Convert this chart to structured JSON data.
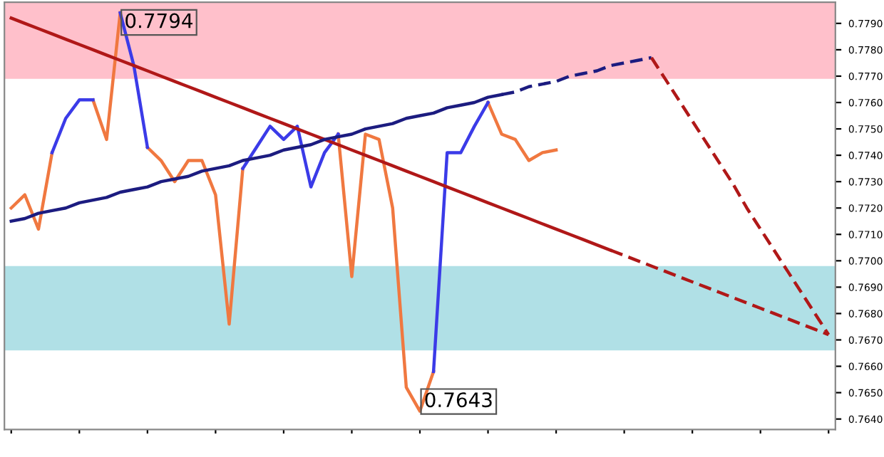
{
  "chart_data": {
    "type": "line",
    "categories": [
      null,
      null,
      null,
      null,
      null,
      null,
      null,
      null,
      null,
      null,
      null,
      null,
      null,
      null,
      null,
      null,
      null,
      null,
      null,
      null,
      null,
      null,
      null,
      null,
      null,
      null,
      null,
      null,
      null,
      null,
      null,
      null,
      null,
      null,
      null,
      null,
      null,
      null,
      null,
      null,
      null,
      null,
      null,
      null,
      null,
      null,
      null,
      null,
      null,
      null,
      null,
      null,
      null,
      null,
      null,
      null,
      null,
      null,
      null,
      null,
      null
    ],
    "series": [
      {
        "color": "#f07840",
        "values": [
          0.772,
          0.7725,
          0.7712,
          0.7741,
          null,
          null,
          0.7761,
          0.7746,
          0.7794,
          null,
          0.7743,
          0.7738,
          0.773,
          0.7738,
          0.7738,
          0.7725,
          0.7676,
          0.7735,
          null,
          null,
          null,
          null,
          null,
          null,
          0.7748,
          0.7694,
          0.7748,
          0.7746,
          0.772,
          0.7652,
          0.7643,
          0.7658,
          null,
          null,
          null,
          0.776,
          0.7748,
          0.7746,
          0.7738,
          0.7741,
          0.7742,
          null,
          null,
          null,
          null,
          null,
          null,
          null,
          null,
          null,
          null,
          null,
          null,
          null,
          null,
          null,
          null,
          null,
          null,
          null,
          null
        ]
      },
      {
        "color": "#3b3be8",
        "values": [
          null,
          null,
          null,
          0.7741,
          0.7754,
          0.7761,
          0.7761,
          null,
          0.7794,
          0.7774,
          0.7743,
          null,
          null,
          null,
          null,
          null,
          null,
          0.7735,
          0.7743,
          0.7751,
          0.7746,
          0.7751,
          0.7728,
          0.7741,
          0.7748,
          null,
          null,
          null,
          null,
          null,
          null,
          0.7658,
          0.7741,
          0.7741,
          0.7751,
          0.776,
          null,
          null,
          null,
          null,
          null,
          null,
          null,
          null,
          null,
          null,
          null,
          null,
          null,
          null,
          null,
          null,
          null,
          null,
          null,
          null,
          null,
          null,
          null,
          null,
          null
        ]
      },
      {
        "color": "#b01818",
        "line_style": "solid",
        "values": [
          0.7792,
          0.779,
          0.7788,
          0.7786,
          0.7784,
          0.7782,
          0.778,
          0.7778,
          0.7776,
          0.7774,
          0.7772,
          0.777,
          0.7768,
          0.7766,
          0.7764,
          0.7762,
          0.776,
          0.7758,
          0.7756,
          0.7754,
          0.7752,
          0.775,
          0.7748,
          0.7746,
          0.7744,
          0.7742,
          0.774,
          0.7738,
          0.7736,
          0.7734,
          0.7732,
          0.773,
          0.7728,
          0.7726,
          0.7724,
          0.7722,
          0.772,
          0.7718,
          0.7716,
          0.7714,
          0.7712,
          0.771,
          0.7708,
          0.7706,
          0.7704,
          null,
          null,
          null,
          null,
          null,
          null,
          null,
          null,
          null,
          null,
          null,
          null,
          null,
          null,
          null,
          null
        ]
      },
      {
        "color": "#b01818",
        "line_style": "dashed",
        "values": [
          null,
          null,
          null,
          null,
          null,
          null,
          null,
          null,
          null,
          null,
          null,
          null,
          null,
          null,
          null,
          null,
          null,
          null,
          null,
          null,
          null,
          null,
          null,
          null,
          null,
          null,
          null,
          null,
          null,
          null,
          null,
          null,
          null,
          null,
          null,
          null,
          null,
          null,
          null,
          null,
          null,
          null,
          null,
          null,
          0.7704,
          0.7702,
          0.77,
          0.7698,
          0.7696,
          0.7694,
          0.7692,
          0.769,
          0.7688,
          0.7686,
          0.7684,
          0.7682,
          0.768,
          0.7678,
          0.7676,
          0.7674,
          0.7672
        ]
      },
      {
        "color": "#1c1c80",
        "line_style": "solid",
        "values": [
          0.7715,
          0.7716,
          0.7718,
          0.7719,
          0.772,
          0.7722,
          0.7723,
          0.7724,
          0.7726,
          0.7727,
          0.7728,
          0.773,
          0.7731,
          0.7732,
          0.7734,
          0.7735,
          0.7736,
          0.7738,
          0.7739,
          0.774,
          0.7742,
          0.7743,
          0.7744,
          0.7746,
          0.7747,
          0.7748,
          0.775,
          0.7751,
          0.7752,
          0.7754,
          0.7755,
          0.7756,
          0.7758,
          0.7759,
          0.776,
          0.7762,
          0.7763,
          null,
          null,
          null,
          null,
          null,
          null,
          null,
          null,
          null,
          null,
          null,
          null,
          null,
          null,
          null,
          null,
          null,
          null,
          null,
          null,
          null,
          null,
          null,
          null
        ]
      },
      {
        "color": "#1c1c80",
        "line_style": "dashed",
        "values": [
          null,
          null,
          null,
          null,
          null,
          null,
          null,
          null,
          null,
          null,
          null,
          null,
          null,
          null,
          null,
          null,
          null,
          null,
          null,
          null,
          null,
          null,
          null,
          null,
          null,
          null,
          null,
          null,
          null,
          null,
          null,
          null,
          null,
          null,
          null,
          null,
          0.7763,
          0.7764,
          0.7766,
          0.7767,
          0.7768,
          0.777,
          0.7771,
          0.7772,
          0.7774,
          0.7775,
          0.7776,
          0.7777,
          null,
          null,
          null,
          null,
          null,
          null,
          null,
          null,
          null,
          null,
          null,
          null,
          null
        ]
      },
      {
        "color": "#b01818",
        "line_style": "dashed",
        "values": [
          null,
          null,
          null,
          null,
          null,
          null,
          null,
          null,
          null,
          null,
          null,
          null,
          null,
          null,
          null,
          null,
          null,
          null,
          null,
          null,
          null,
          null,
          null,
          null,
          null,
          null,
          null,
          null,
          null,
          null,
          null,
          null,
          null,
          null,
          null,
          null,
          null,
          null,
          null,
          null,
          null,
          null,
          null,
          null,
          null,
          null,
          null,
          0.7777,
          0.7769,
          0.7761,
          0.7753,
          0.7745,
          0.7737,
          0.7729,
          0.772,
          0.7712,
          0.7704,
          0.7696,
          0.7688,
          0.768,
          0.7672
        ]
      }
    ],
    "ylim": [
      0.7636,
      0.7798
    ],
    "yticks": [
      {
        "value": 0.764,
        "label": "0.7640"
      },
      {
        "value": 0.765,
        "label": "0.7650"
      },
      {
        "value": 0.766,
        "label": "0.7660"
      },
      {
        "value": 0.767,
        "label": "0.7670"
      },
      {
        "value": 0.768,
        "label": "0.7680"
      },
      {
        "value": 0.769,
        "label": "0.7690"
      },
      {
        "value": 0.77,
        "label": "0.7700"
      },
      {
        "value": 0.771,
        "label": "0.7710"
      },
      {
        "value": 0.772,
        "label": "0.7720"
      },
      {
        "value": 0.773,
        "label": "0.7730"
      },
      {
        "value": 0.774,
        "label": "0.7740"
      },
      {
        "value": 0.775,
        "label": "0.7750"
      },
      {
        "value": 0.776,
        "label": "0.7760"
      },
      {
        "value": 0.777,
        "label": "0.7770"
      },
      {
        "value": 0.778,
        "label": "0.7780"
      },
      {
        "value": 0.779,
        "label": "0.7790"
      }
    ],
    "bands": [
      {
        "axis": "y",
        "from": 0.7769,
        "to": 0.7798,
        "color": "#ffc0cb"
      },
      {
        "axis": "y",
        "from": 0.7666,
        "to": 0.7698,
        "color": "#b0e0e6"
      }
    ],
    "annotations": [
      "0.7794",
      "0.7643"
    ],
    "tick_labels": "y",
    "grid": false,
    "legend": false
  }
}
